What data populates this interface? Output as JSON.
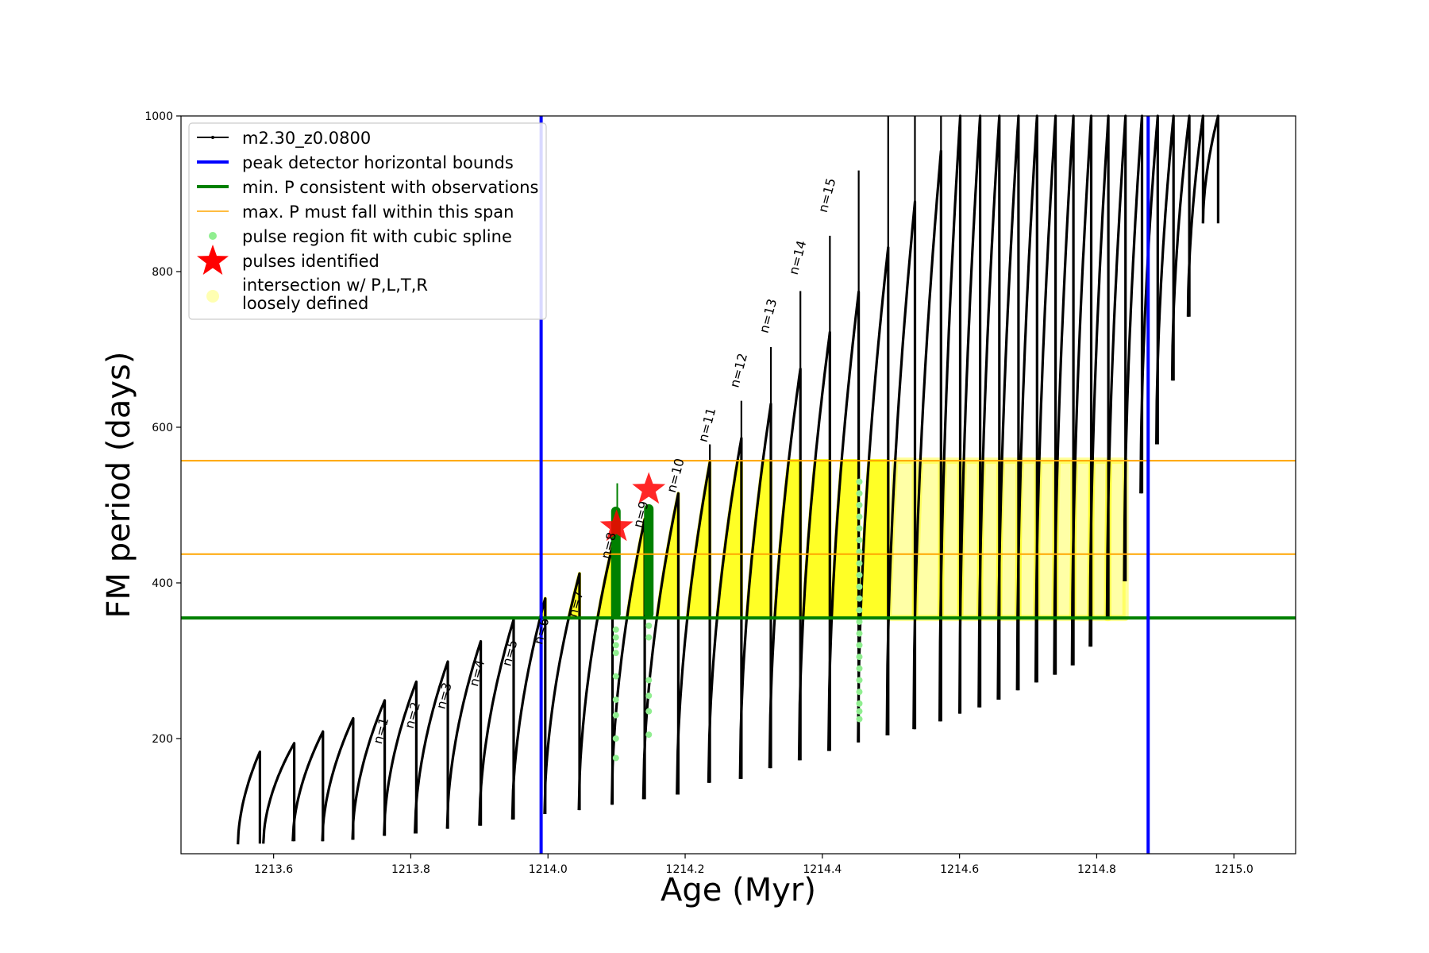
{
  "chart_data": {
    "type": "line",
    "title": "",
    "xlabel": "Age (Myr)",
    "ylabel": "FM period (days)",
    "xlim": [
      1213.465,
      1215.09
    ],
    "ylim": [
      52,
      1000
    ],
    "xticks": [
      1213.6,
      1213.8,
      1214.0,
      1214.2,
      1214.4,
      1214.6,
      1214.8,
      1215.0
    ],
    "xtick_labels": [
      "1213.6",
      "1213.8",
      "1214.0",
      "1214.2",
      "1214.4",
      "1214.6",
      "1214.8",
      "1215.0"
    ],
    "yticks": [
      200,
      400,
      600,
      800,
      1000
    ],
    "ytick_labels": [
      "200",
      "400",
      "600",
      "800",
      "1000"
    ],
    "grid": false,
    "legend_position": "upper-left",
    "colors": {
      "track": "#000000",
      "bounds": "#0000ff",
      "min_p": "#008000",
      "max_p": "#ffa500",
      "spline": "#90ee90",
      "pulse": "#ff0000",
      "intersection": "#ffff00"
    },
    "series_names": {
      "track": "m2.30_z0.0800",
      "bounds": "peak detector horizontal bounds",
      "min_p": "min. P consistent with observations",
      "max_p": "max. P must fall within this span",
      "spline": "pulse region fit with cubic spline",
      "pulses": "pulses identified",
      "intersection_line1": "intersection w/ P,L,T,R",
      "intersection_line2": "loosely defined"
    },
    "vertical_lines": [
      1213.99,
      1214.875
    ],
    "min_p_line": 355,
    "max_p_lines": [
      437,
      557
    ],
    "pulses_identified": [
      {
        "x": 1214.1,
        "y": 472
      },
      {
        "x": 1214.147,
        "y": 520
      }
    ],
    "cycles": [
      {
        "x0": 1213.548,
        "xp": 1213.58,
        "lo": 64,
        "peak": 183,
        "spike": 166
      },
      {
        "x0": 1213.585,
        "xp": 1213.63,
        "lo": 65,
        "peak": 194
      },
      {
        "x0": 1213.628,
        "xp": 1213.672,
        "lo": 68,
        "peak": 209
      },
      {
        "x0": 1213.671,
        "xp": 1213.716,
        "lo": 68,
        "peak": 226
      },
      {
        "x0": 1213.715,
        "xp": 1213.762,
        "lo": 70,
        "peak": 249
      },
      {
        "x0": 1213.761,
        "xp": 1213.808,
        "lo": 75,
        "peak": 273
      },
      {
        "x0": 1213.806,
        "xp": 1213.854,
        "lo": 78,
        "peak": 299
      },
      {
        "x0": 1213.853,
        "xp": 1213.902,
        "lo": 84,
        "peak": 325
      },
      {
        "x0": 1213.9,
        "xp": 1213.95,
        "lo": 88,
        "peak": 353
      },
      {
        "x0": 1213.948,
        "xp": 1213.996,
        "lo": 96,
        "peak": 380
      },
      {
        "x0": 1213.995,
        "xp": 1214.046,
        "lo": 103,
        "peak": 412
      },
      {
        "x0": 1214.045,
        "xp": 1214.094,
        "lo": 108,
        "peak": 448
      },
      {
        "x0": 1214.093,
        "xp": 1214.141,
        "lo": 115,
        "peak": 482
      },
      {
        "x0": 1214.139,
        "xp": 1214.19,
        "lo": 122,
        "peak": 515
      },
      {
        "x0": 1214.188,
        "xp": 1214.236,
        "lo": 128,
        "peak": 555,
        "spike": 578
      },
      {
        "x0": 1214.234,
        "xp": 1214.282,
        "lo": 143,
        "peak": 586,
        "spike": 634
      },
      {
        "x0": 1214.28,
        "xp": 1214.325,
        "lo": 148,
        "peak": 630,
        "spike": 703
      },
      {
        "x0": 1214.323,
        "xp": 1214.368,
        "lo": 162,
        "peak": 675,
        "spike": 775
      },
      {
        "x0": 1214.366,
        "xp": 1214.411,
        "lo": 172,
        "peak": 722,
        "spike": 846
      },
      {
        "x0": 1214.409,
        "xp": 1214.453,
        "lo": 184,
        "peak": 774,
        "spike": 930
      },
      {
        "x0": 1214.452,
        "xp": 1214.496,
        "lo": 195,
        "peak": 831,
        "spike": 1000
      },
      {
        "x0": 1214.494,
        "xp": 1214.535,
        "lo": 204,
        "peak": 890,
        "spike": 1000
      },
      {
        "x0": 1214.533,
        "xp": 1214.573,
        "lo": 212,
        "peak": 955,
        "spike": 1000
      },
      {
        "x0": 1214.571,
        "xp": 1214.601,
        "lo": 222,
        "peak": 1000
      },
      {
        "x0": 1214.6,
        "xp": 1214.63,
        "lo": 232,
        "peak": 1000
      },
      {
        "x0": 1214.628,
        "xp": 1214.658,
        "lo": 240,
        "peak": 1000
      },
      {
        "x0": 1214.656,
        "xp": 1214.686,
        "lo": 250,
        "peak": 1000
      },
      {
        "x0": 1214.684,
        "xp": 1214.713,
        "lo": 262,
        "peak": 1000
      },
      {
        "x0": 1214.711,
        "xp": 1214.74,
        "lo": 272,
        "peak": 1000
      },
      {
        "x0": 1214.738,
        "xp": 1214.766,
        "lo": 282,
        "peak": 1000
      },
      {
        "x0": 1214.764,
        "xp": 1214.792,
        "lo": 294,
        "peak": 1000
      },
      {
        "x0": 1214.79,
        "xp": 1214.817,
        "lo": 318,
        "peak": 1000
      },
      {
        "x0": 1214.815,
        "xp": 1214.842,
        "lo": 355,
        "peak": 1000
      },
      {
        "x0": 1214.84,
        "xp": 1214.866,
        "lo": 402,
        "peak": 1000
      },
      {
        "x0": 1214.864,
        "xp": 1214.889,
        "lo": 515,
        "peak": 1000
      },
      {
        "x0": 1214.887,
        "xp": 1214.912,
        "lo": 578,
        "peak": 1000
      },
      {
        "x0": 1214.91,
        "xp": 1214.935,
        "lo": 660,
        "peak": 1000
      },
      {
        "x0": 1214.933,
        "xp": 1214.955,
        "lo": 742,
        "peak": 1000
      },
      {
        "x0": 1214.955,
        "xp": 1214.977,
        "lo": 862,
        "peak": 1000
      }
    ],
    "n_labels": [
      {
        "text": "n=1",
        "x": 1213.762,
        "y": 192
      },
      {
        "text": "n=2",
        "x": 1213.808,
        "y": 212
      },
      {
        "text": "n=3",
        "x": 1213.854,
        "y": 237
      },
      {
        "text": "n=4",
        "x": 1213.902,
        "y": 266
      },
      {
        "text": "n=5",
        "x": 1213.95,
        "y": 292
      },
      {
        "text": "n=6",
        "x": 1213.996,
        "y": 320
      },
      {
        "text": "n=7",
        "x": 1214.046,
        "y": 355
      },
      {
        "text": "n=8",
        "x": 1214.094,
        "y": 430
      },
      {
        "text": "n=9",
        "x": 1214.141,
        "y": 470
      },
      {
        "text": "n=10",
        "x": 1214.19,
        "y": 515
      },
      {
        "text": "n=11",
        "x": 1214.236,
        "y": 580
      },
      {
        "text": "n=12",
        "x": 1214.282,
        "y": 650
      },
      {
        "text": "n=13",
        "x": 1214.325,
        "y": 720
      },
      {
        "text": "n=14",
        "x": 1214.368,
        "y": 795
      },
      {
        "text": "n=15",
        "x": 1214.411,
        "y": 875
      }
    ]
  }
}
